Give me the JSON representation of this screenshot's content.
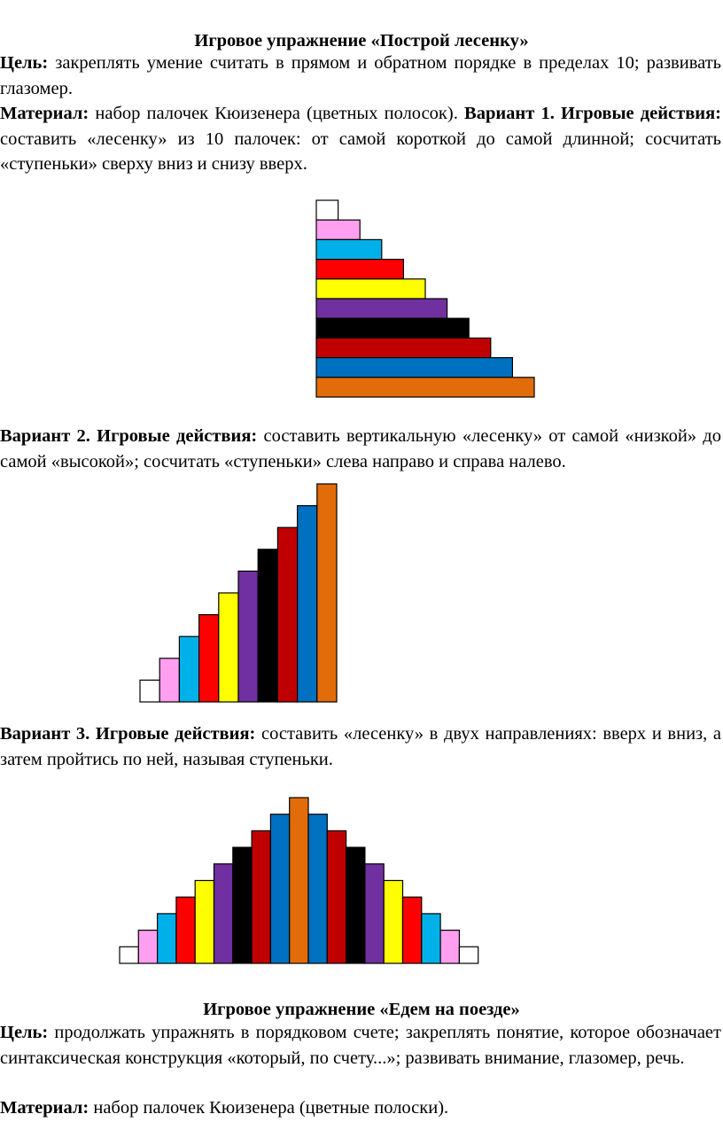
{
  "section1": {
    "title": "Игровое упражнение «Построй лесенку»",
    "goal_label": "Цель:",
    "goal_text": " закреплять умение считать в прямом и обратном порядке в пределах 10; развивать глазомер.",
    "material_label": "Материал:",
    "material_text": " набор палочек Кюизенера (цветных полосок). ",
    "variant1_label": "Вариант 1. Игровые действия:",
    "variant1_text": " составить «лесенку» из 10 палочек: от самой короткой до самой длинной; сосчитать «ступеньки» сверху вниз и снизу вверх.",
    "variant2_label": "Вариант 2. Игровые действия:",
    "variant2_text": " составить вертикальную «лесенку» от самой «низкой» до самой «высокой»; сосчитать «ступеньки» слева направо и справа налево.",
    "variant3_label": "Вариант 3. Игровые действия:",
    "variant3_text": " составить «лесенку» в двух направлениях: вверх и вниз, а затем пройтись по ней, называя ступеньки."
  },
  "section2": {
    "title": "Игровое упражнение «Едем на поезде»",
    "goal_label": "Цель:",
    "goal_text": " продолжать упражнять в порядковом счете; закреплять понятие, которое обозначает синтаксическая конструкция «который, по счету...»; развивать внимание, глазомер, речь.",
    "material_label": "Материал:",
    "material_text": " набор палочек Кюизенера (цветные полоски)."
  },
  "rods": [
    {
      "length": 1,
      "color": "#ffffff"
    },
    {
      "length": 2,
      "color": "#ff9ff0"
    },
    {
      "length": 3,
      "color": "#00b0e8"
    },
    {
      "length": 4,
      "color": "#ff0000"
    },
    {
      "length": 5,
      "color": "#ffff00"
    },
    {
      "length": 6,
      "color": "#7030a0"
    },
    {
      "length": 7,
      "color": "#000000"
    },
    {
      "length": 8,
      "color": "#c00000"
    },
    {
      "length": 9,
      "color": "#0070c0"
    },
    {
      "length": 10,
      "color": "#e36c0a"
    }
  ]
}
